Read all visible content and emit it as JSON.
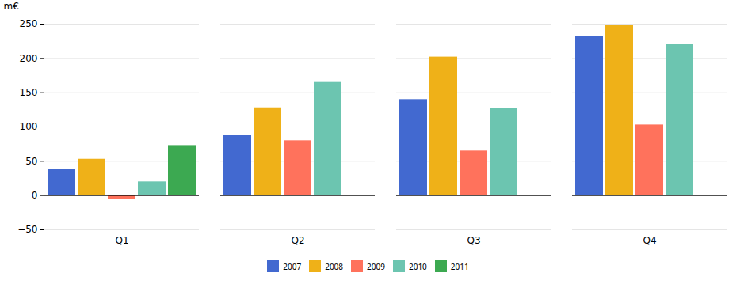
{
  "chart_data": {
    "type": "bar",
    "ylabel": "m€",
    "categories": [
      "Q1",
      "Q2",
      "Q3",
      "Q4"
    ],
    "series": [
      {
        "name": "2007",
        "values": [
          38,
          88,
          140,
          232
        ]
      },
      {
        "name": "2008",
        "values": [
          53,
          128,
          202,
          248
        ]
      },
      {
        "name": "2009",
        "values": [
          -5,
          80,
          65,
          103
        ]
      },
      {
        "name": "2010",
        "values": [
          20,
          165,
          127,
          220
        ]
      },
      {
        "name": "2011",
        "values": [
          73,
          null,
          null,
          null
        ]
      }
    ],
    "ylim": [
      -50,
      250
    ],
    "yticks": [
      -50,
      0,
      50,
      100,
      150,
      200,
      250
    ],
    "grid": true,
    "legend": "bottom"
  }
}
